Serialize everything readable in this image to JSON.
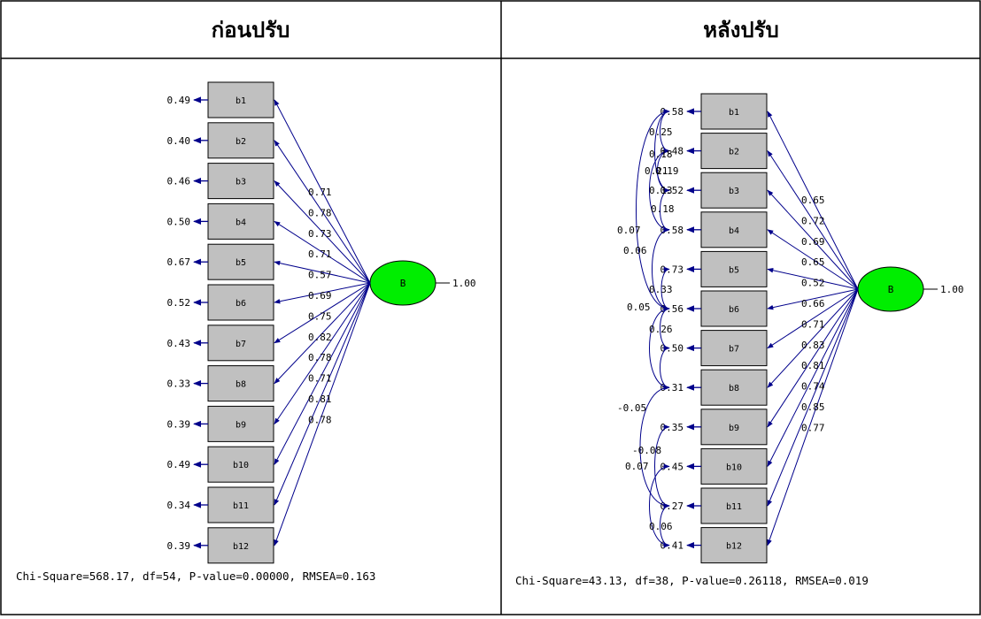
{
  "headers": {
    "before": "ก่อนปรับ",
    "after": "หลังปรับ"
  },
  "colors": {
    "indicator_box": "#c0c0c0",
    "latent": "#00ee00",
    "path": "#00008b",
    "border": "#000000"
  },
  "before": {
    "latent": "B",
    "latent_variance": "1.00",
    "indicators": [
      "b1",
      "b2",
      "b3",
      "b4",
      "b5",
      "b6",
      "b7",
      "b8",
      "b9",
      "b10",
      "b11",
      "b12"
    ],
    "errors": [
      "0.49",
      "0.40",
      "0.46",
      "0.50",
      "0.67",
      "0.52",
      "0.43",
      "0.33",
      "0.39",
      "0.49",
      "0.34",
      "0.39"
    ],
    "loadings": [
      "0.71",
      "0.78",
      "0.73",
      "0.71",
      "0.57",
      "0.69",
      "0.75",
      "0.82",
      "0.78",
      "0.71",
      "0.81",
      "0.78"
    ],
    "fit": "Chi-Square=568.17, df=54, P-value=0.00000, RMSEA=0.163"
  },
  "after": {
    "latent": "B",
    "latent_variance": "1.00",
    "indicators": [
      "b1",
      "b2",
      "b3",
      "b4",
      "b5",
      "b6",
      "b7",
      "b8",
      "b9",
      "b10",
      "b11",
      "b12"
    ],
    "errors": [
      "0.58",
      "0.48",
      "0.52",
      "0.58",
      "0.73",
      "0.56",
      "0.50",
      "0.31",
      "0.35",
      "0.45",
      "0.27",
      "0.41"
    ],
    "loadings": [
      "0.65",
      "0.72",
      "0.69",
      "0.65",
      "0.52",
      "0.66",
      "0.71",
      "0.83",
      "0.81",
      "0.74",
      "0.85",
      "0.77"
    ],
    "covariances": [
      "0.25",
      "0.18",
      "0.21",
      "0.19",
      "0.13",
      "0.18",
      "0.07",
      "0.06",
      "0.05",
      "0.33",
      "0.26",
      "-0.05",
      "-0.08",
      "0.07",
      "0.06"
    ],
    "fit": "Chi-Square=43.13, df=38, P-value=0.26118, RMSEA=0.019"
  }
}
